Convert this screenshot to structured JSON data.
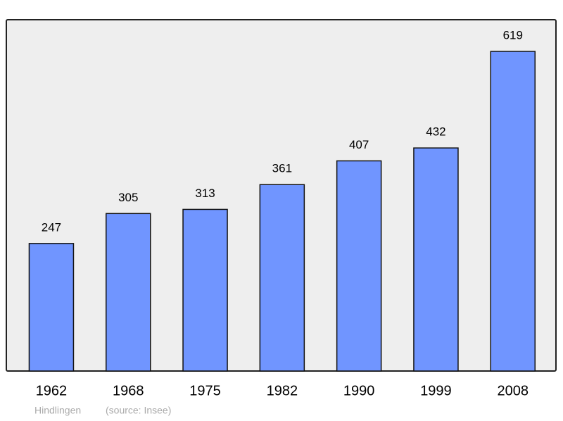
{
  "chart_data": {
    "type": "bar",
    "categories": [
      "1962",
      "1968",
      "1975",
      "1982",
      "1990",
      "1999",
      "2008"
    ],
    "values": [
      247,
      305,
      313,
      361,
      407,
      432,
      619
    ],
    "color": "#7095ff",
    "caption": "Hindlingen",
    "source": "(source: Insee)"
  }
}
